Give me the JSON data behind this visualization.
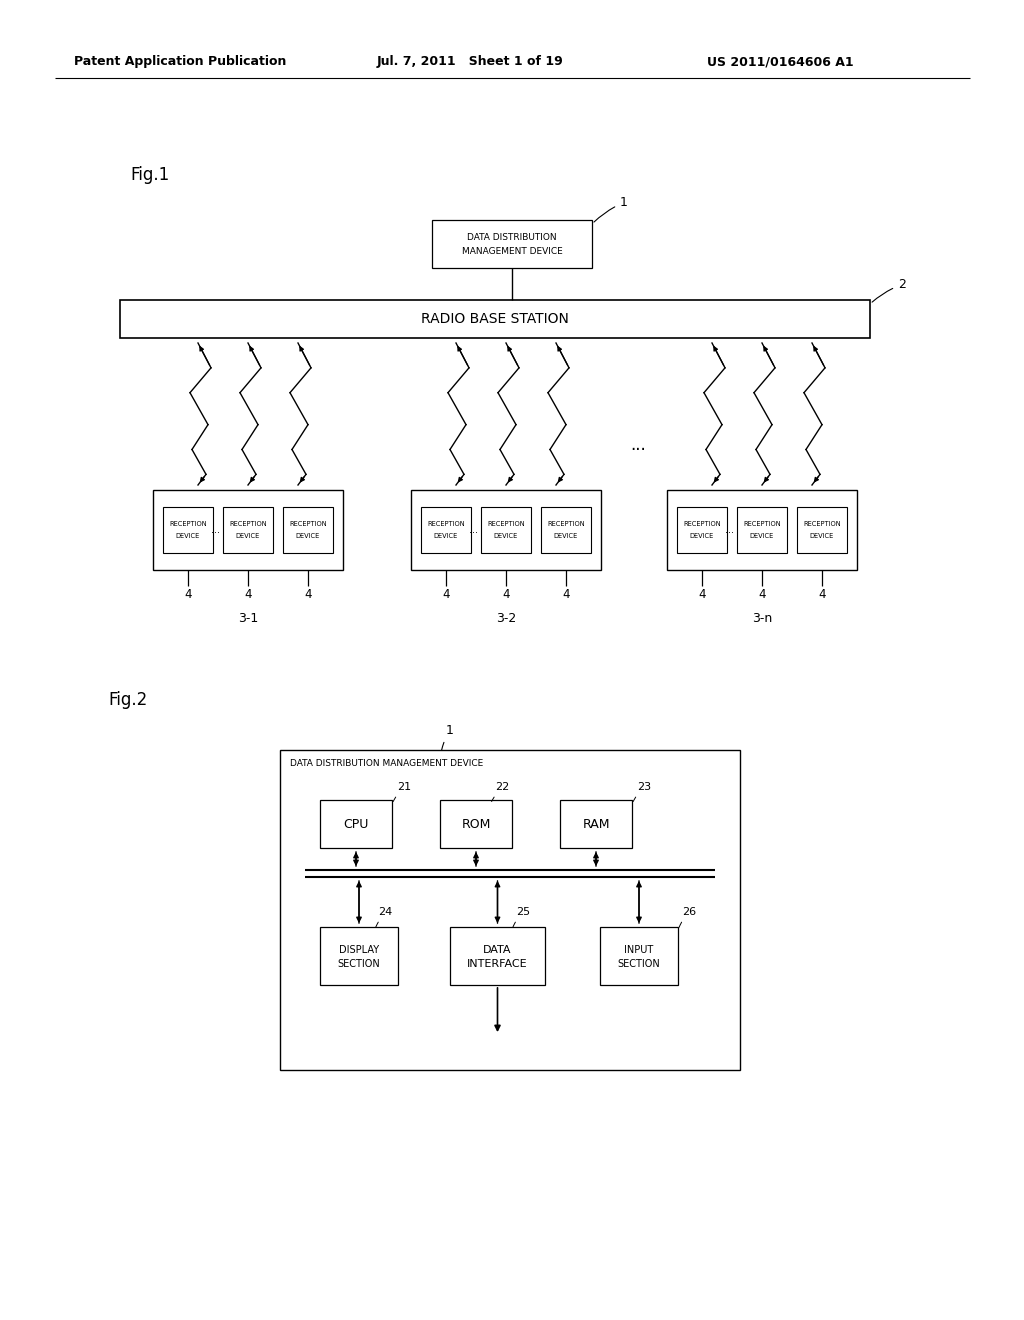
{
  "header_left": "Patent Application Publication",
  "header_mid": "Jul. 7, 2011   Sheet 1 of 19",
  "header_right": "US 2011/0164606 A1",
  "fig1_label": "Fig.1",
  "fig2_label": "Fig.2",
  "bg_color": "#ffffff",
  "line_color": "#000000",
  "text_color": "#000000"
}
